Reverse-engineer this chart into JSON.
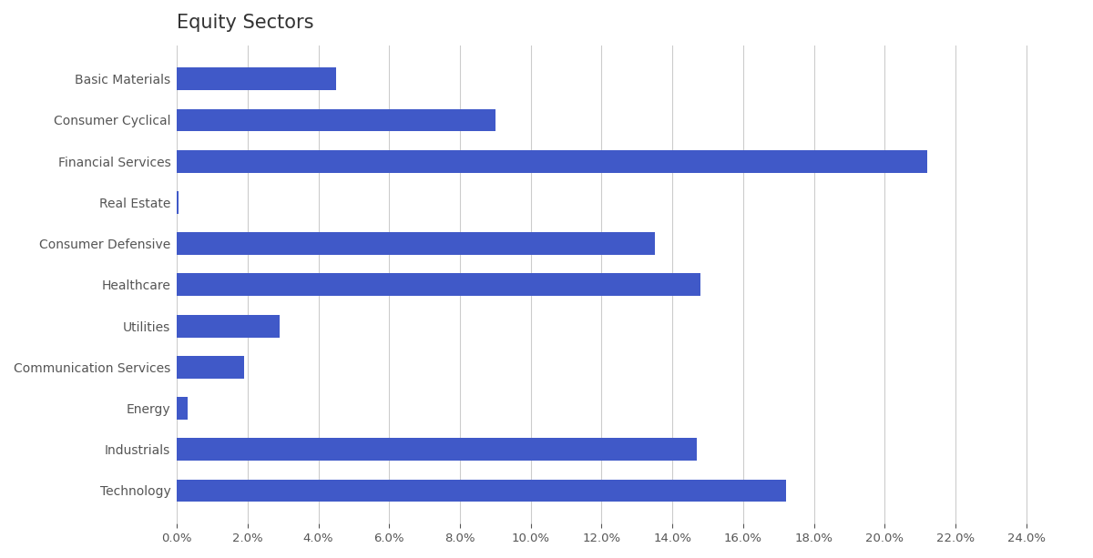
{
  "title": "Equity Sectors",
  "categories": [
    "Basic Materials",
    "Consumer Cyclical",
    "Financial Services",
    "Real Estate",
    "Consumer Defensive",
    "Healthcare",
    "Utilities",
    "Communication Services",
    "Energy",
    "Industrials",
    "Technology"
  ],
  "values": [
    4.5,
    9.0,
    21.2,
    0.05,
    13.5,
    14.8,
    2.9,
    1.9,
    0.3,
    14.7,
    17.2
  ],
  "bar_color": "#4059c8",
  "background_color": "#ffffff",
  "title_fontsize": 15,
  "label_fontsize": 10,
  "tick_fontsize": 9.5,
  "xlim": [
    0,
    25.5
  ],
  "xtick_step": 2.0,
  "grid_color": "#cccccc",
  "bar_height": 0.55,
  "title_color": "#333333",
  "label_color": "#555555"
}
